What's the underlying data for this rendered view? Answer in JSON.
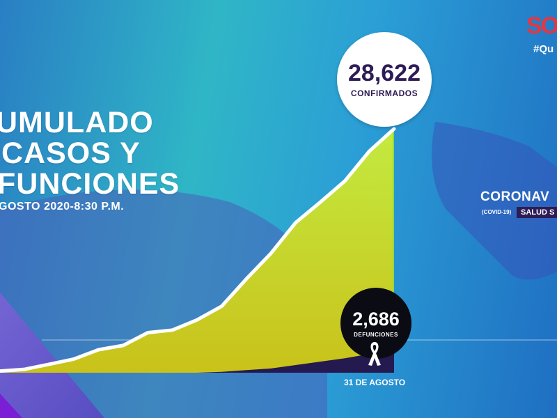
{
  "header": {
    "title_lines": [
      "UMULADO",
      "CASOS Y",
      "FUNCIONES"
    ],
    "subtitle": "GOSTO 2020-8:30 P.M."
  },
  "callouts": {
    "confirmed_value": "28,622",
    "confirmed_label": "CONFIRMADOS",
    "deaths_value": "2,686",
    "deaths_label": "DEFUNCIONES",
    "date_label": "31 DE AGOSTO"
  },
  "brand": {
    "logo_text": "SO",
    "hashtag": "#Qu"
  },
  "corona_panel": {
    "title": "CORONAV",
    "sub": "(COVID-19)",
    "badge": "SALUD S"
  },
  "colors": {
    "confirmed_fill_top": "#c3ea40",
    "confirmed_fill_bottom": "#c9c21a",
    "deaths_fill": "#241a4f",
    "line": "#ffffff",
    "bubble_dark": "#0b0b14",
    "title_text": "#ffffff",
    "accent_purple": "#2d1c56"
  },
  "chart_data": {
    "type": "area",
    "title": "",
    "xlabel": "",
    "ylabel": "",
    "x": [
      0,
      1,
      2,
      3,
      4,
      5,
      6,
      7,
      8,
      9,
      10,
      11,
      12,
      13,
      14,
      15,
      16
    ],
    "series": [
      {
        "name": "CONFIRMADOS",
        "values": [
          200,
          400,
          1000,
          1600,
          2700,
          3200,
          4700,
          5000,
          6200,
          7800,
          11000,
          14000,
          17600,
          20000,
          22500,
          26000,
          28622
        ]
      },
      {
        "name": "DEFUNCIONES",
        "values": [
          0,
          0,
          0,
          0,
          0,
          0,
          0,
          0,
          0,
          100,
          300,
          500,
          900,
          1300,
          1700,
          2200,
          2686
        ]
      }
    ],
    "ylim": [
      0,
      30000
    ],
    "grid": false,
    "legend": "none"
  }
}
